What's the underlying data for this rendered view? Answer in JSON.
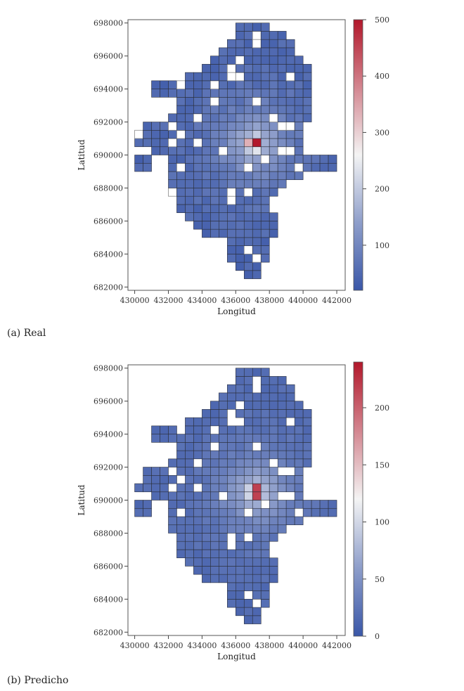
{
  "chart_data": [
    {
      "type": "heatmap",
      "caption": "(a) Real",
      "xlabel": "Longitud",
      "ylabel": "Latitud",
      "xlim": [
        429600,
        442500
      ],
      "ylim": [
        681800,
        698200
      ],
      "x_ticks": [
        430000,
        432000,
        434000,
        436000,
        438000,
        440000,
        442000
      ],
      "x_tick_labels": [
        "430000",
        "432000",
        "434000",
        "436000",
        "438000",
        "440000",
        "442000"
      ],
      "y_ticks": [
        682000,
        684000,
        686000,
        688000,
        690000,
        692000,
        694000,
        696000,
        698000
      ],
      "y_tick_labels": [
        "682000",
        "684000",
        "686000",
        "688000",
        "690000",
        "692000",
        "694000",
        "696000",
        "698000"
      ],
      "colorbar": {
        "min": 20,
        "max": 500,
        "ticks": [
          100,
          200,
          300,
          400,
          500
        ],
        "tick_labels": [
          "100",
          "200",
          "300",
          "400",
          "500"
        ],
        "colors": [
          "#3a57a8",
          "#f4f4f4",
          "#b2182b"
        ],
        "mid": 260
      },
      "cell_size": 500,
      "baseline_value": 45,
      "hotspot": {
        "x": 437100,
        "y": 690700,
        "peak": 500
      },
      "empty_cell_style": "grey-outline",
      "grid": false,
      "legend": "right"
    },
    {
      "type": "heatmap",
      "caption": "(b) Predicho",
      "xlabel": "Longitud",
      "ylabel": "Latitud",
      "xlim": [
        429600,
        442500
      ],
      "ylim": [
        681800,
        698200
      ],
      "x_ticks": [
        430000,
        432000,
        434000,
        436000,
        438000,
        440000,
        442000
      ],
      "x_tick_labels": [
        "430000",
        "432000",
        "434000",
        "436000",
        "438000",
        "440000",
        "442000"
      ],
      "y_ticks": [
        682000,
        684000,
        686000,
        688000,
        690000,
        692000,
        694000,
        696000,
        698000
      ],
      "y_tick_labels": [
        "682000",
        "684000",
        "686000",
        "688000",
        "690000",
        "692000",
        "694000",
        "696000",
        "698000"
      ],
      "colorbar": {
        "min": 0,
        "max": 240,
        "ticks": [
          0,
          50,
          100,
          150,
          200
        ],
        "tick_labels": [
          "0",
          "50",
          "100",
          "150",
          "200"
        ],
        "colors": [
          "#3a57a8",
          "#f4f4f4",
          "#b2182b"
        ],
        "mid": 120
      },
      "cell_size": 500,
      "baseline_value": 15,
      "hotspot": {
        "x": 437200,
        "y": 690500,
        "peak": 240
      },
      "empty_cell_style": "none",
      "grid": false,
      "legend": "right"
    }
  ]
}
